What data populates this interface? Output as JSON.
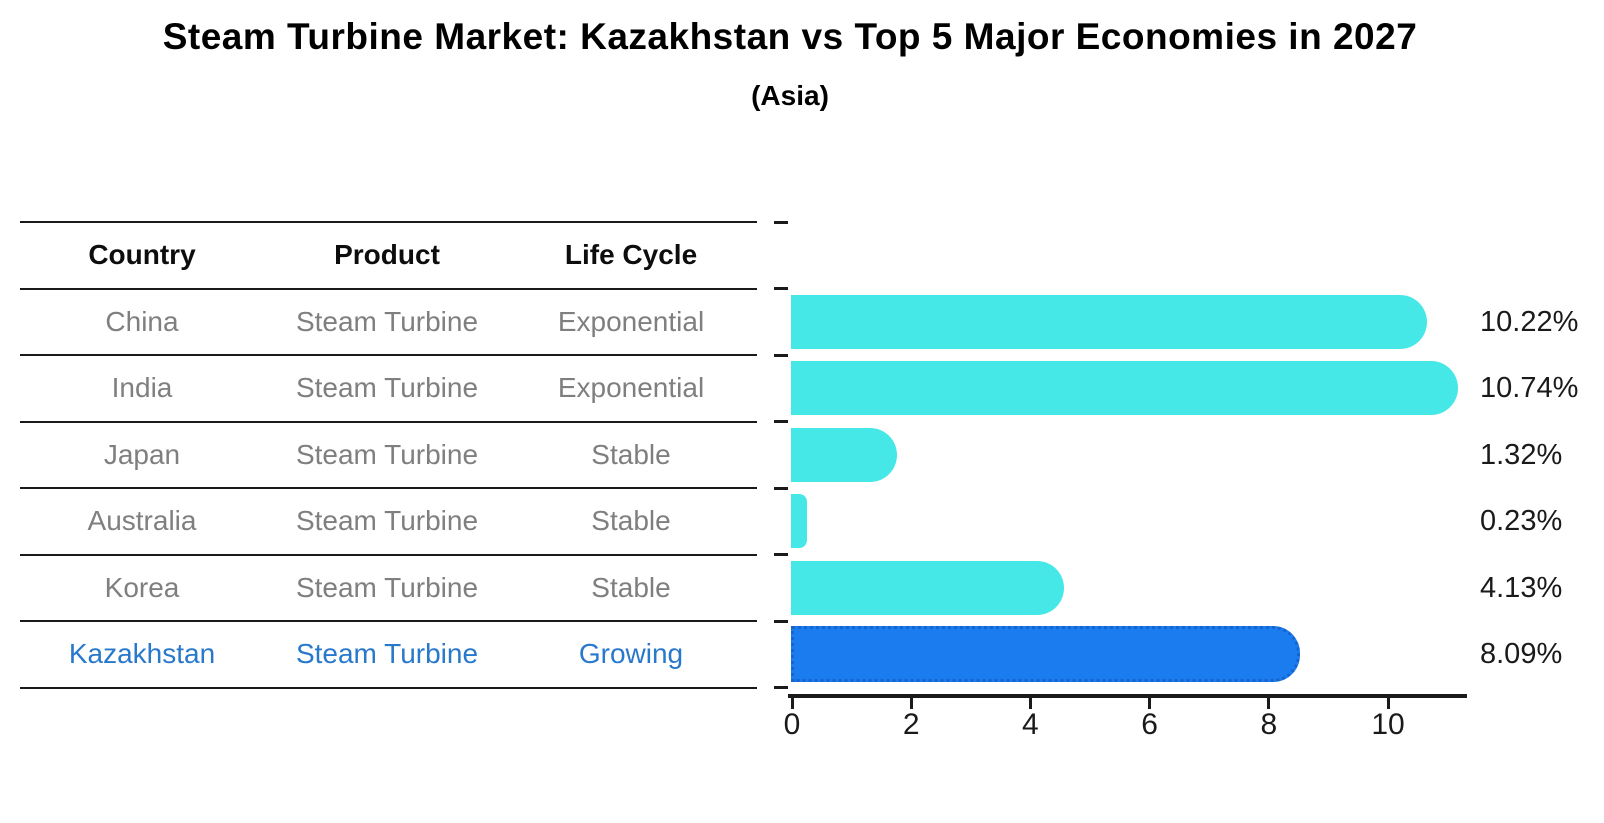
{
  "header": {
    "title": "Steam Turbine Market: Kazakhstan vs Top 5 Major Economies in 2027",
    "subtitle": "(Asia)"
  },
  "table": {
    "headers": [
      "Country",
      "Product",
      "Life Cycle"
    ],
    "rows": [
      {
        "country": "China",
        "product": "Steam Turbine",
        "life_cycle": "Exponential",
        "highlight": false
      },
      {
        "country": "India",
        "product": "Steam Turbine",
        "life_cycle": "Exponential",
        "highlight": false
      },
      {
        "country": "Japan",
        "product": "Steam Turbine",
        "life_cycle": "Stable",
        "highlight": false
      },
      {
        "country": "Australia",
        "product": "Steam Turbine",
        "life_cycle": "Stable",
        "highlight": false
      },
      {
        "country": "Korea",
        "product": "Steam Turbine",
        "life_cycle": "Stable",
        "highlight": false
      },
      {
        "country": "Kazakhstan",
        "product": "Steam Turbine",
        "life_cycle": "Growing",
        "highlight": true
      }
    ]
  },
  "chart_data": {
    "type": "bar",
    "orientation": "horizontal",
    "title": "Steam Turbine Market: Kazakhstan vs Top 5 Major Economies in 2027",
    "subtitle": "(Asia)",
    "categories": [
      "China",
      "India",
      "Japan",
      "Australia",
      "Korea",
      "Kazakhstan"
    ],
    "values": [
      10.22,
      10.74,
      1.32,
      0.23,
      4.13,
      8.09
    ],
    "value_labels": [
      "10.22%",
      "10.74%",
      "1.32%",
      "0.23%",
      "4.13%",
      "8.09%"
    ],
    "x_ticks": [
      "0",
      "2",
      "4",
      "6",
      "8",
      "10"
    ],
    "x_tick_values": [
      0,
      2,
      4,
      6,
      8,
      10
    ],
    "xlim": [
      0,
      11.3
    ],
    "grid": false,
    "legend": "none",
    "bar_color": "#45e8e6",
    "highlight_color": "#1b7cf0",
    "highlight_border_color": "#1565ce",
    "highlight_index": 5
  },
  "colors": {
    "bar": "#45e8e6",
    "highlight_bar": "#1b7cf0",
    "highlight_text": "#2878cb",
    "body_text": "#7f7f7f",
    "heading_text": "#000000",
    "line": "#1a1a1a"
  }
}
